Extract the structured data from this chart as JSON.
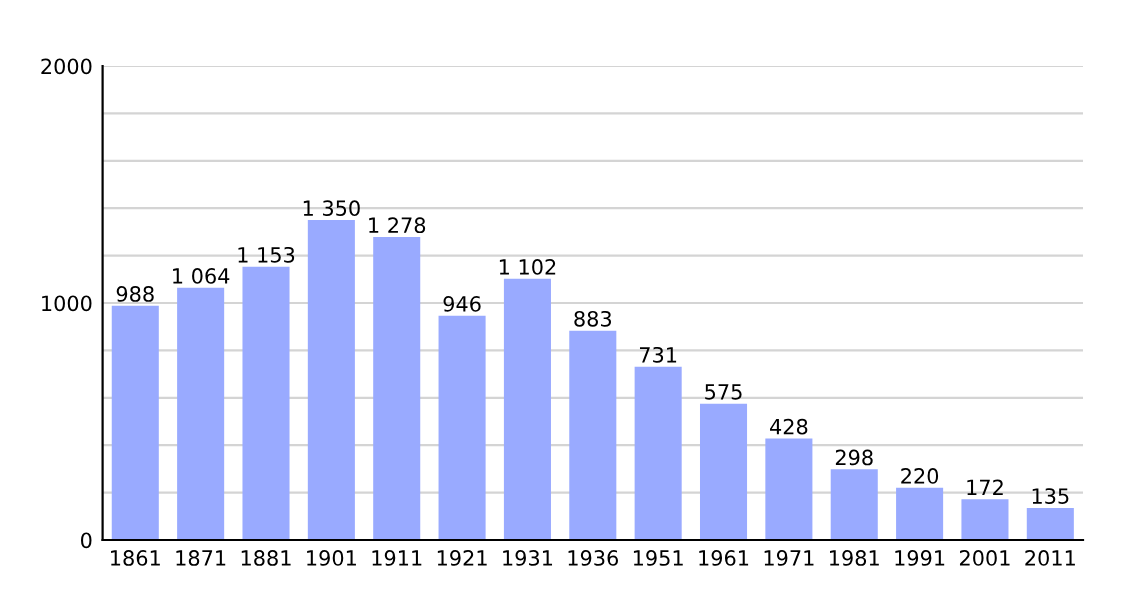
{
  "chart_data": {
    "type": "bar",
    "categories": [
      "1861",
      "1871",
      "1881",
      "1901",
      "1911",
      "1921",
      "1931",
      "1936",
      "1951",
      "1961",
      "1971",
      "1981",
      "1991",
      "2001",
      "2011"
    ],
    "values": [
      988,
      1064,
      1153,
      1350,
      1278,
      946,
      1102,
      883,
      731,
      575,
      428,
      298,
      220,
      172,
      135
    ],
    "value_labels": [
      "988",
      "1 064",
      "1 153",
      "1 350",
      "1 278",
      "946",
      "1 102",
      "883",
      "731",
      "575",
      "428",
      "298",
      "220",
      "172",
      "135"
    ],
    "color": "#99aaff",
    "ylim": [
      0,
      2000
    ],
    "yticks": [
      0,
      {
        "value": 200,
        "label": null
      },
      {
        "value": 400,
        "label": null
      },
      {
        "value": 600,
        "label": null
      },
      {
        "value": 800,
        "label": null
      },
      1000,
      {
        "value": 1200,
        "label": null
      },
      {
        "value": 1400,
        "label": null
      },
      {
        "value": 1600,
        "label": null
      },
      {
        "value": 1800,
        "label": null
      },
      2000
    ],
    "grid": "y"
  }
}
